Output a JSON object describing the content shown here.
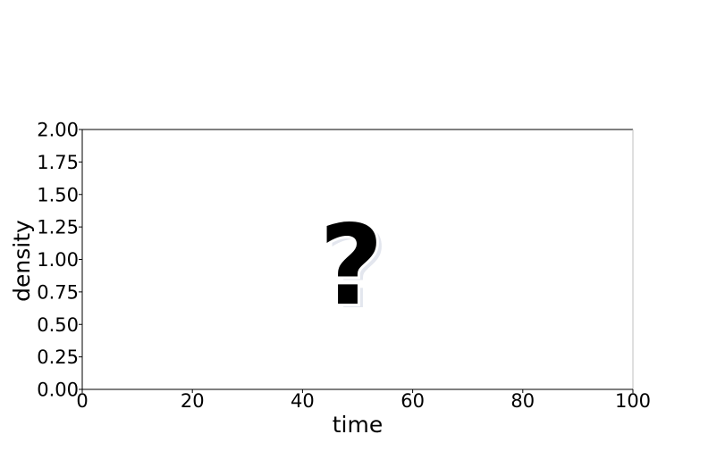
{
  "chart_data": {
    "type": "line",
    "xlabel": "time",
    "ylabel": "density",
    "xlim": [
      0,
      100
    ],
    "ylim": [
      0,
      2
    ],
    "x_ticks": [
      "0",
      "20",
      "40",
      "60",
      "80",
      "100"
    ],
    "y_ticks": [
      "0.00",
      "0.25",
      "0.50",
      "0.75",
      "1.00",
      "1.25",
      "1.50",
      "1.75",
      "2.00"
    ],
    "series": [],
    "grid": false,
    "annotation": "?",
    "colors": {
      "axis": "#000000",
      "right_spine": "#bfbfbf",
      "placeholder_shadow": "#e3e6ee"
    }
  }
}
